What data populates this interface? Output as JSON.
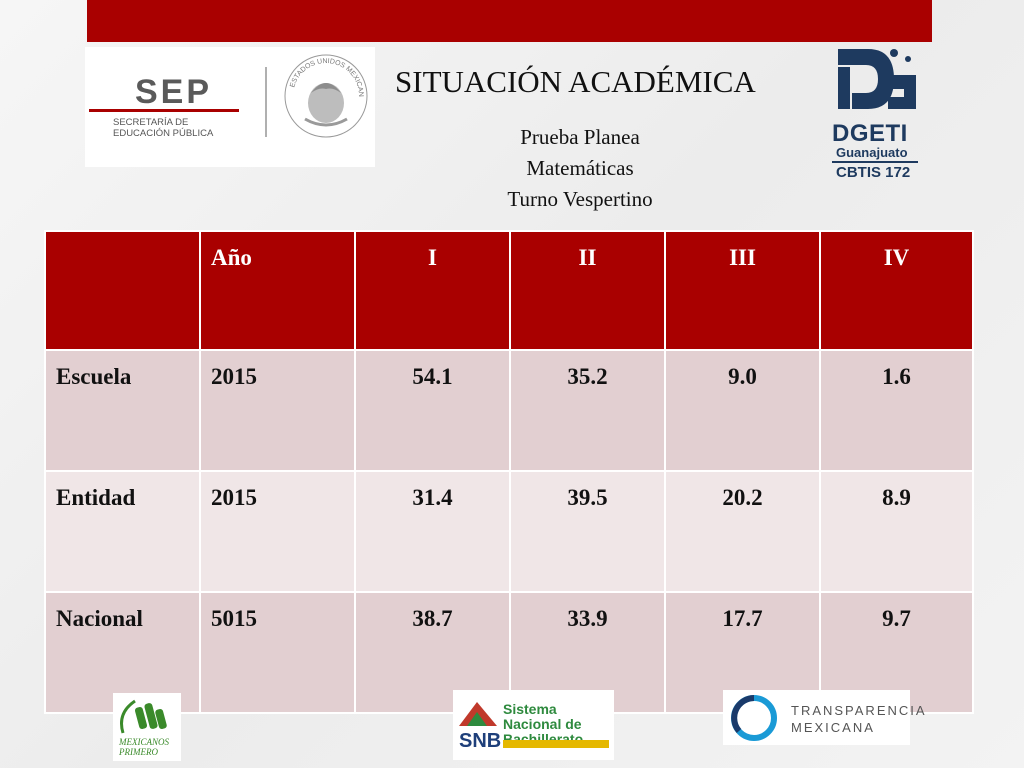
{
  "header": {
    "title": "SITUACIÓN ACADÉMICA",
    "subtitle_lines": [
      "Prueba Planea",
      "Matemáticas",
      "Turno Vespertino"
    ]
  },
  "logos": {
    "sep": {
      "name": "SEP",
      "subtitle": "SECRETARÍA DE EDUCACIÓN PÚBLICA"
    },
    "seal": {
      "text": "ESTADOS UNIDOS MEXICANOS"
    },
    "dgeti": {
      "name": "DGETI",
      "state": "Guanajuato",
      "school": "CBTIS 172"
    },
    "mexicanos": {
      "text": "MEXICANOS PRIMERO"
    },
    "snb": {
      "name": "Sistema Nacional de Bachillerato",
      "abbr": "SNB"
    },
    "transparencia": {
      "line1": "TRANSPARENCIA",
      "line2": "MEXICANA"
    }
  },
  "table": {
    "headers": [
      "",
      "Año",
      "I",
      "II",
      "III",
      "IV"
    ],
    "rows": [
      {
        "label": "Escuela",
        "year": "2015",
        "values": [
          "54.1",
          "35.2",
          "9.0",
          "1.6"
        ]
      },
      {
        "label": "Entidad",
        "year": "2015",
        "values": [
          "31.4",
          "39.5",
          "20.2",
          "8.9"
        ]
      },
      {
        "label": "Nacional",
        "year": "5015",
        "values": [
          "38.7",
          "33.9",
          "17.7",
          "9.7"
        ]
      }
    ]
  },
  "colors": {
    "accent": "#a90000",
    "row_dark": "#e2cfd1",
    "row_light": "#f0e6e7",
    "dgeti_blue": "#1e3a5f"
  }
}
